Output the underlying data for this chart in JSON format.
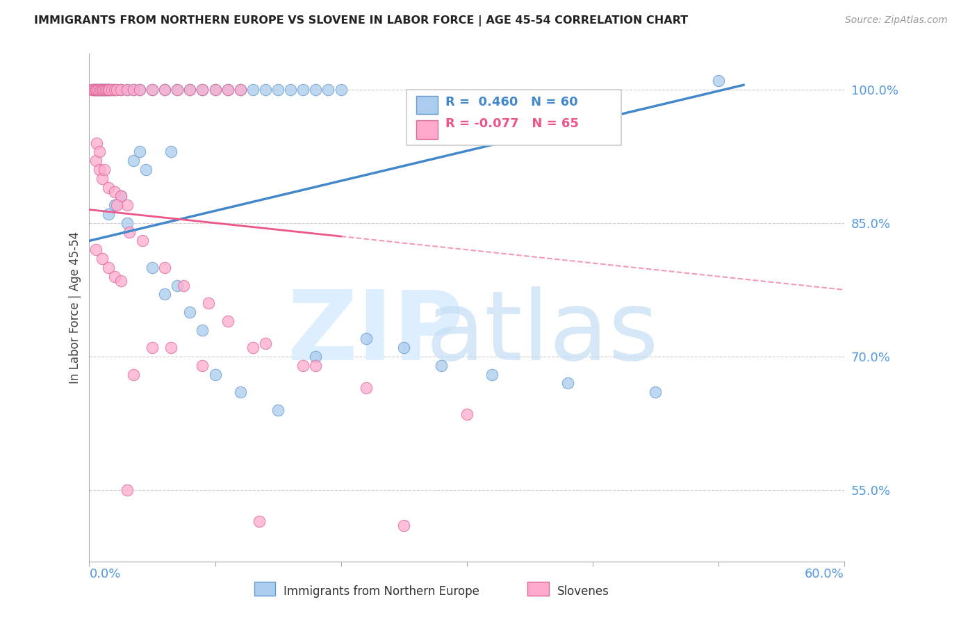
{
  "title": "IMMIGRANTS FROM NORTHERN EUROPE VS SLOVENE IN LABOR FORCE | AGE 45-54 CORRELATION CHART",
  "source": "Source: ZipAtlas.com",
  "ylabel": "In Labor Force | Age 45-54",
  "xlim": [
    0.0,
    60.0
  ],
  "ylim": [
    47.0,
    104.0
  ],
  "yticks": [
    55.0,
    70.0,
    85.0,
    100.0
  ],
  "legend_r_blue": "0.460",
  "legend_n_blue": "60",
  "legend_r_pink": "-0.077",
  "legend_n_pink": "65",
  "blue_face": "#aaccee",
  "blue_edge": "#6699cc",
  "pink_face": "#ffaacc",
  "pink_edge": "#dd6699",
  "blue_line": "#4488cc",
  "pink_line": "#ee5588",
  "title_color": "#222222",
  "source_color": "#999999",
  "yaxis_color": "#5599dd",
  "grid_color": "#cccccc",
  "blue_x": [
    0.3,
    0.4,
    0.5,
    0.6,
    0.7,
    0.8,
    0.9,
    1.0,
    1.1,
    1.2,
    1.3,
    1.4,
    1.5,
    1.6,
    1.8,
    2.0,
    2.5,
    3.0,
    3.5,
    4.0,
    5.0,
    6.0,
    7.0,
    8.0,
    9.0,
    10.0,
    11.0,
    12.0,
    13.0,
    14.0,
    15.0,
    16.0,
    17.0,
    18.0,
    19.0,
    20.0,
    1.5,
    2.0,
    2.5,
    3.0,
    3.5,
    4.0,
    5.0,
    6.0,
    7.0,
    8.0,
    9.0,
    10.0,
    12.0,
    15.0,
    18.0,
    22.0,
    25.0,
    28.0,
    32.0,
    38.0,
    45.0,
    50.0,
    4.5,
    6.5
  ],
  "blue_y": [
    100.0,
    100.0,
    100.0,
    100.0,
    100.0,
    100.0,
    100.0,
    100.0,
    100.0,
    100.0,
    100.0,
    100.0,
    100.0,
    100.0,
    100.0,
    100.0,
    100.0,
    100.0,
    100.0,
    100.0,
    100.0,
    100.0,
    100.0,
    100.0,
    100.0,
    100.0,
    100.0,
    100.0,
    100.0,
    100.0,
    100.0,
    100.0,
    100.0,
    100.0,
    100.0,
    100.0,
    86.0,
    87.0,
    88.0,
    85.0,
    92.0,
    93.0,
    80.0,
    77.0,
    78.0,
    75.0,
    73.0,
    68.0,
    66.0,
    64.0,
    70.0,
    72.0,
    71.0,
    69.0,
    68.0,
    67.0,
    66.0,
    101.0,
    91.0,
    93.0
  ],
  "pink_x": [
    0.2,
    0.3,
    0.4,
    0.5,
    0.6,
    0.7,
    0.8,
    0.9,
    1.0,
    1.1,
    1.2,
    1.3,
    1.4,
    1.5,
    1.6,
    1.8,
    2.0,
    2.2,
    2.5,
    3.0,
    3.5,
    4.0,
    5.0,
    6.0,
    7.0,
    8.0,
    9.0,
    10.0,
    11.0,
    12.0,
    0.5,
    0.8,
    1.0,
    1.5,
    2.0,
    2.5,
    3.0,
    0.5,
    1.0,
    1.5,
    2.0,
    2.5,
    3.5,
    6.5,
    5.0,
    9.0,
    13.0,
    18.0,
    25.0,
    3.0,
    13.5,
    0.6,
    0.8,
    1.2,
    2.2,
    3.2,
    4.2,
    6.0,
    7.5,
    9.5,
    11.0,
    14.0,
    17.0,
    22.0,
    30.0
  ],
  "pink_y": [
    100.0,
    100.0,
    100.0,
    100.0,
    100.0,
    100.0,
    100.0,
    100.0,
    100.0,
    100.0,
    100.0,
    100.0,
    100.0,
    100.0,
    100.0,
    100.0,
    100.0,
    100.0,
    100.0,
    100.0,
    100.0,
    100.0,
    100.0,
    100.0,
    100.0,
    100.0,
    100.0,
    100.0,
    100.0,
    100.0,
    92.0,
    91.0,
    90.0,
    89.0,
    88.5,
    88.0,
    87.0,
    82.0,
    81.0,
    80.0,
    79.0,
    78.5,
    68.0,
    71.0,
    71.0,
    69.0,
    71.0,
    69.0,
    51.0,
    55.0,
    51.5,
    94.0,
    93.0,
    91.0,
    87.0,
    84.0,
    83.0,
    80.0,
    78.0,
    76.0,
    74.0,
    71.5,
    69.0,
    66.5,
    63.5
  ],
  "blue_line_x0": 0.0,
  "blue_line_x1": 52.0,
  "blue_line_y0": 83.0,
  "blue_line_y1": 100.5,
  "pink_line_x0": 0.0,
  "pink_line_x1": 60.0,
  "pink_line_y0": 86.5,
  "pink_line_y1": 77.5,
  "pink_solid_end_x": 20.0,
  "bottom_label1": "Immigrants from Northern Europe",
  "bottom_label2": "Slovenes"
}
